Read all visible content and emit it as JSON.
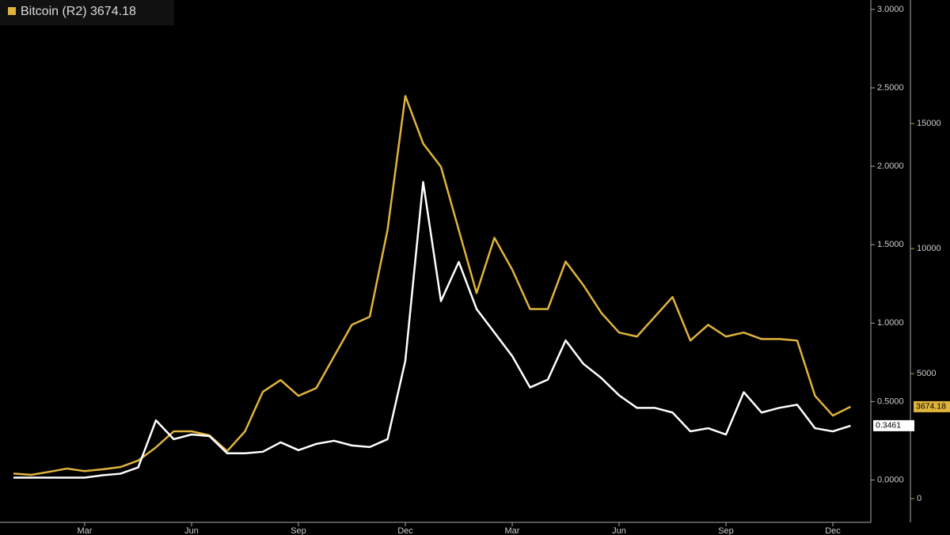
{
  "chart_data": {
    "type": "line",
    "categories": [
      null,
      null,
      null,
      null,
      "Mar",
      null,
      null,
      null,
      null,
      null,
      "Jun",
      null,
      null,
      null,
      null,
      null,
      "Sep",
      null,
      null,
      null,
      null,
      null,
      "Dec",
      null,
      null,
      null,
      null,
      null,
      "Mar",
      null,
      null,
      null,
      null,
      null,
      "Jun",
      null,
      null,
      null,
      null,
      null,
      "Sep",
      null,
      null,
      null,
      null,
      null,
      "Dec",
      null
    ],
    "series": [
      {
        "color": "#ffffff",
        "axis": "y",
        "values": [
          0.015,
          0.015,
          0.015,
          0.015,
          0.015,
          0.03,
          0.04,
          0.08,
          0.38,
          0.26,
          0.29,
          0.28,
          0.17,
          0.17,
          0.18,
          0.24,
          0.19,
          0.23,
          0.25,
          0.22,
          0.21,
          0.26,
          0.76,
          1.9,
          1.14,
          1.39,
          1.09,
          0.94,
          0.79,
          0.59,
          0.64,
          0.89,
          0.74,
          0.65,
          0.54,
          0.46,
          0.46,
          0.43,
          0.31,
          0.33,
          0.29,
          0.56,
          0.43,
          0.46,
          0.48,
          0.33,
          0.31,
          0.3461
        ]
      },
      {
        "name": "Bitcoin (R2)",
        "color": "#e0b43c",
        "axis": "y2",
        "values": [
          1000,
          950,
          1070,
          1200,
          1100,
          1170,
          1260,
          1520,
          2050,
          2690,
          2690,
          2530,
          1900,
          2690,
          4270,
          4740,
          4110,
          4420,
          5690,
          6950,
          7270,
          10740,
          16100,
          14200,
          13270,
          10740,
          8220,
          10430,
          9160,
          7580,
          7580,
          9480,
          8530,
          7430,
          6640,
          6480,
          7270,
          8060,
          6320,
          6950,
          6480,
          6640,
          6380,
          6380,
          6320,
          4110,
          3320,
          3674.18
        ]
      }
    ],
    "ylim": [
      -0.27,
      3.06
    ],
    "yticks": [
      {
        "value": 0,
        "label": "0.0000"
      },
      {
        "value": 0.5,
        "label": "0.5000"
      },
      {
        "value": 1,
        "label": "1.0000"
      },
      {
        "value": 1.5,
        "label": "1.5000"
      },
      {
        "value": 2,
        "label": "2.0000"
      },
      {
        "value": 2.5,
        "label": "2.5000"
      },
      {
        "value": 3,
        "label": "3.0000"
      }
    ],
    "y2lim": [
      -950,
      19940
    ],
    "y2ticks": [
      0,
      5000,
      10000,
      15000
    ],
    "grid": false
  }
}
